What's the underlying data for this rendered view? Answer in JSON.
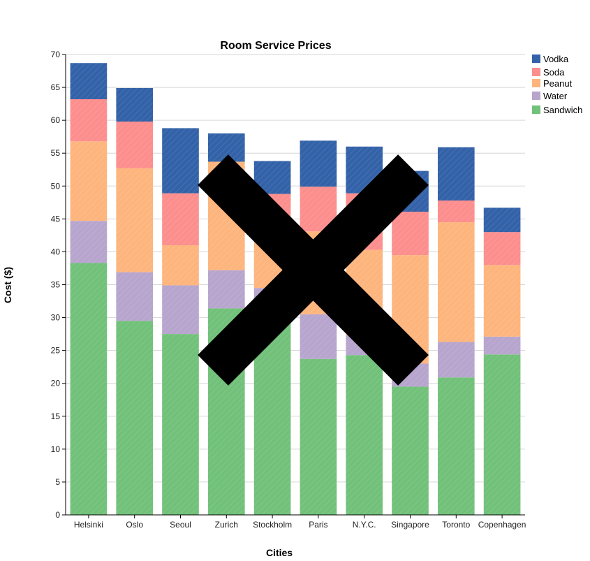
{
  "chart_data": {
    "type": "bar",
    "stacked": true,
    "title": "Room Service Prices",
    "xlabel": "Cities",
    "ylabel": "Cost ($)",
    "ylim": [
      0,
      70
    ],
    "yticks": [
      0,
      5,
      10,
      15,
      20,
      25,
      30,
      35,
      40,
      45,
      50,
      55,
      60,
      65,
      70
    ],
    "grid": true,
    "legend_position": "top-right",
    "categories": [
      "Helsinki",
      "Oslo",
      "Seoul",
      "Zurich",
      "Stockholm",
      "Paris",
      "N.Y.C.",
      "Singapore",
      "Toronto",
      "Copenhagen"
    ],
    "series": [
      {
        "name": "Sandwich",
        "color": "#72c17a",
        "values": [
          38.3,
          29.5,
          27.5,
          31.4,
          31.5,
          23.7,
          24.3,
          19.5,
          20.9,
          24.4
        ]
      },
      {
        "name": "Water",
        "color": "#b7a5ce",
        "values": [
          6.4,
          7.4,
          7.4,
          5.8,
          3.0,
          6.8,
          3.0,
          3.5,
          5.4,
          2.7
        ]
      },
      {
        "name": "Peanut",
        "color": "#fdb57d",
        "values": [
          12.1,
          15.8,
          6.1,
          16.5,
          10.3,
          12.6,
          13.0,
          16.5,
          18.2,
          10.9
        ]
      },
      {
        "name": "Soda",
        "color": "#fd8e8e",
        "values": [
          6.4,
          7.1,
          7.9,
          0.0,
          4.0,
          6.8,
          8.6,
          6.6,
          3.3,
          5.0
        ]
      },
      {
        "name": "Vodka",
        "color": "#3362a8",
        "values": [
          5.5,
          5.1,
          9.9,
          4.3,
          5.0,
          7.0,
          7.1,
          6.2,
          8.1,
          3.7
        ]
      }
    ],
    "legend_order": [
      "Vodka",
      "Soda",
      "Peanut",
      "Water",
      "Sandwich"
    ]
  }
}
